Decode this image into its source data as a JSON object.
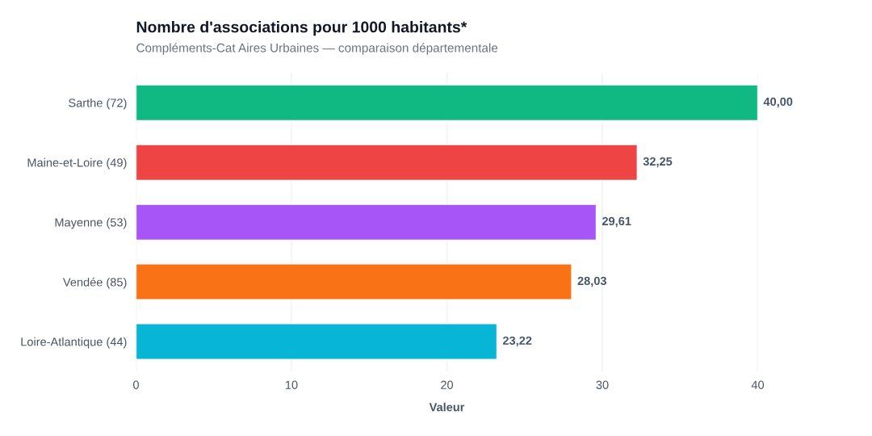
{
  "chart_data": {
    "type": "bar",
    "orientation": "horizontal",
    "title": "Nombre d'associations pour 1000 habitants*",
    "subtitle": "Compléments-Cat Aires Urbaines — comparaison départementale",
    "xlabel": "Valeur",
    "categories": [
      "Sarthe (72)",
      "Maine-et-Loire (49)",
      "Mayenne (53)",
      "Vendée (85)",
      "Loire-Atlantique (44)"
    ],
    "values": [
      40.0,
      32.25,
      29.61,
      28.03,
      23.22
    ],
    "colors": [
      "#10b981",
      "#ef4444",
      "#a855f7",
      "#f97316",
      "#06b6d4"
    ],
    "value_labels": [
      "40,00",
      "32,25",
      "29,61",
      "28,03",
      "23,22"
    ],
    "xlim": [
      0,
      40
    ],
    "xticks": [
      0,
      10,
      20,
      30,
      40
    ],
    "grid": "x",
    "legend": false
  }
}
